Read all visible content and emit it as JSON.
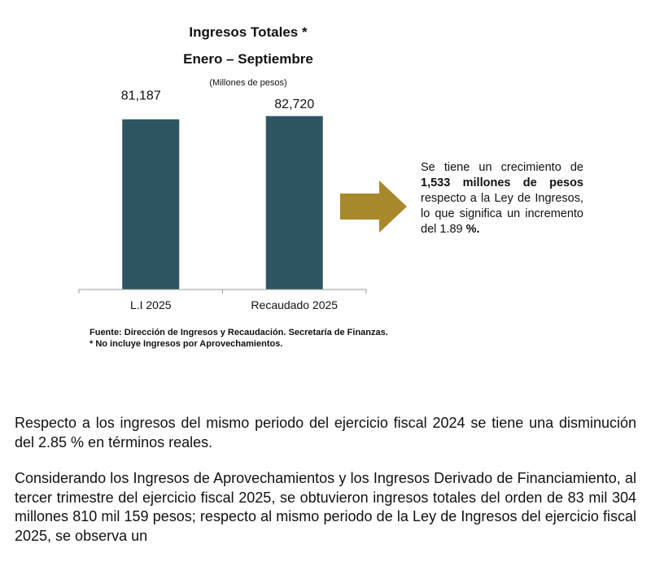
{
  "chart_data": {
    "type": "bar",
    "title": "Ingresos Totales *",
    "subtitle": "Enero – Septiembre",
    "units": "(Millones de pesos)",
    "categories": [
      "L.I 2025",
      "Recaudado 2025"
    ],
    "values": [
      81187,
      82720
    ],
    "value_labels": [
      "81,187",
      "82,720"
    ],
    "ylim": [
      0,
      90000
    ],
    "color": "#2f5562",
    "grid": false
  },
  "arrow_color": "#a8882a",
  "callout": {
    "pre": "Se tiene un crecimiento de ",
    "bold": "1,533 millones de pesos",
    "post": " respecto a la Ley de Ingresos, lo que significa un incremento del 1.89 ",
    "pct": "%."
  },
  "notes": [
    "Fuente: Dirección de Ingresos y Recaudación. Secretaría de Finanzas.",
    "*  No incluye Ingresos por Aprovechamientos."
  ],
  "paragraphs": [
    "Respecto a los ingresos del mismo periodo del ejercicio fiscal 2024 se tiene una disminución del 2.85 % en términos reales.",
    "Considerando los Ingresos de Aprovechamientos y los Ingresos Derivado de Financiamiento, al tercer trimestre del ejercicio fiscal 2025, se obtuvieron ingresos totales del orden de 83 mil 304 millones 810 mil 159 pesos; respecto al mismo periodo de la Ley de Ingresos del ejercicio fiscal 2025, se observa un"
  ]
}
